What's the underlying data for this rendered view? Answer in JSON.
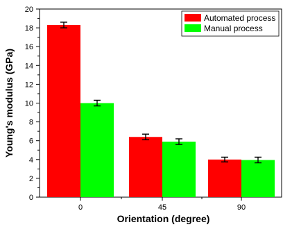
{
  "chart_data": {
    "type": "bar",
    "xlabel": "Orientation (degree)",
    "ylabel": "Young's modulus (GPa)",
    "categories": [
      "0",
      "45",
      "90"
    ],
    "ylim": [
      0,
      20
    ],
    "yticks": [
      0,
      2,
      4,
      6,
      8,
      10,
      12,
      14,
      16,
      18,
      20
    ],
    "grid": false,
    "legend_position": "top-right",
    "series": [
      {
        "name": "Automated process",
        "color": "#ff0000",
        "values": [
          18.3,
          6.4,
          4.0
        ],
        "errors": [
          0.3,
          0.3,
          0.25
        ]
      },
      {
        "name": "Manual process",
        "color": "#00ff00",
        "values": [
          10.0,
          5.9,
          3.95
        ],
        "errors": [
          0.3,
          0.3,
          0.3
        ]
      }
    ]
  }
}
